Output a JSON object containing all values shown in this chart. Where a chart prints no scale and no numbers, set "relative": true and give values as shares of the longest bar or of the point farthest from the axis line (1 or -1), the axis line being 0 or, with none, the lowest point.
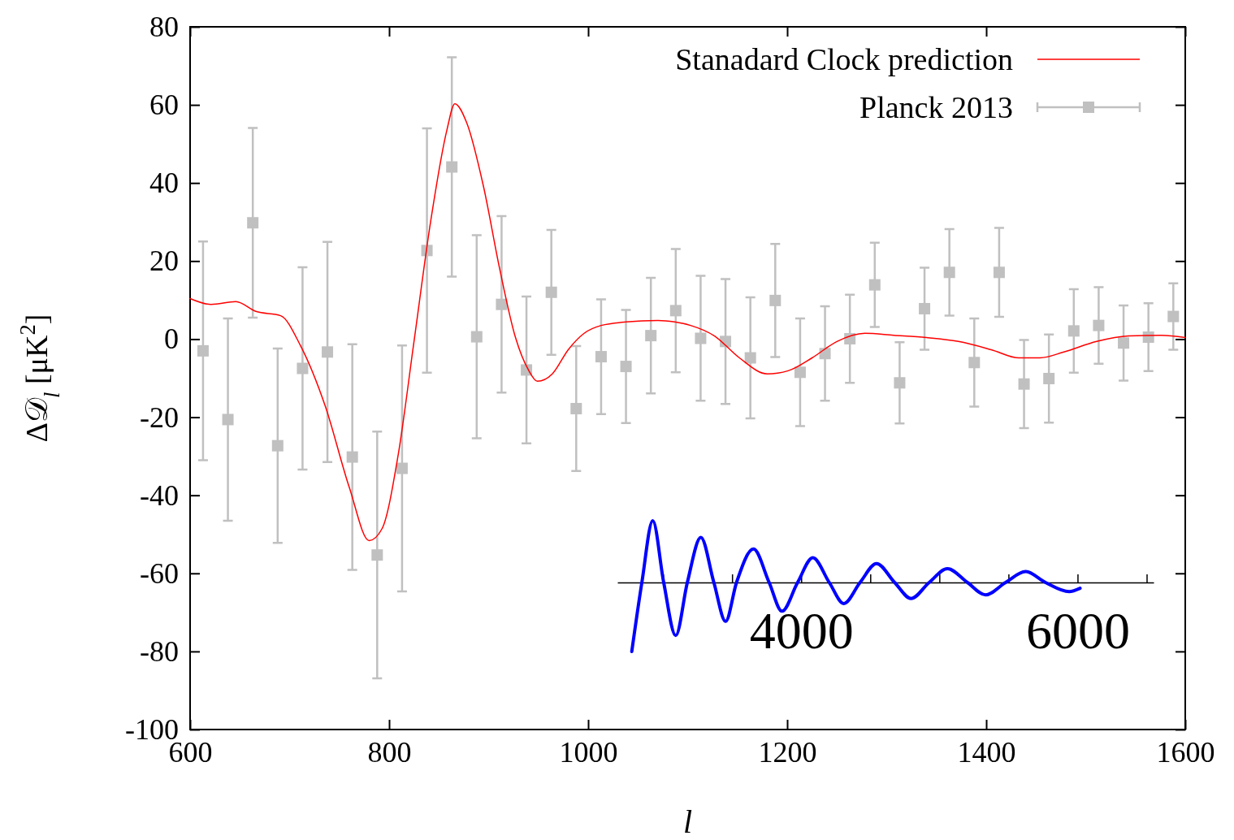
{
  "chart_data": [
    {
      "type": "line",
      "xlabel": "l",
      "ylabel": "Δ𝒟$_{l}$ [μK$^{2}$]",
      "xlim": [
        600,
        1600
      ],
      "xticks": [
        600,
        800,
        1000,
        1200,
        1400,
        1600
      ],
      "ylim": [
        -100,
        80
      ],
      "yticks": [
        -100,
        -80,
        -60,
        -40,
        -20,
        0,
        20,
        40,
        60,
        80
      ],
      "grid": false,
      "legend": "top right",
      "series": [
        {
          "name": "Stanadard Clock prediction",
          "color": "#ff0000",
          "line_style": "solid",
          "x": [
            600,
            621,
            646,
            666,
            691,
            711,
            736,
            760,
            780,
            793,
            809,
            825,
            842,
            858,
            866,
            878,
            895,
            911,
            927,
            940,
            949,
            964,
            980,
            996,
            1013,
            1038,
            1070,
            1087,
            1103,
            1127,
            1152,
            1180,
            1201,
            1225,
            1250,
            1278,
            1307,
            1340,
            1372,
            1405,
            1433,
            1454,
            1478,
            1511,
            1543,
            1576,
            1600
          ],
          "values": [
            10.4,
            8.9,
            9.6,
            7.1,
            6.0,
            -1.7,
            -17.3,
            -38,
            -51.6,
            -48.5,
            -29.8,
            -0.6,
            30.6,
            53.5,
            60.3,
            55.4,
            38.9,
            18.1,
            0.4,
            -7.9,
            -10.8,
            -8.9,
            -2.7,
            1.5,
            3.5,
            4.4,
            4.8,
            4.4,
            3.5,
            0.8,
            -4.8,
            -8.9,
            -8.1,
            -4.8,
            -0.6,
            1.5,
            1.0,
            0.4,
            -0.6,
            -2.7,
            -4.8,
            -4.8,
            -3.3,
            -0.6,
            0.8,
            1.0,
            0.4
          ]
        },
        {
          "name": "Planck 2013",
          "type": "scatter",
          "color": "#c0c0c0",
          "marker": "square",
          "x": [
            613,
            638,
            663,
            688,
            713,
            738,
            763,
            788,
            813,
            838,
            863,
            888,
            913,
            938,
            963,
            988,
            1013,
            1038,
            1063,
            1088,
            1113,
            1138,
            1163,
            1188,
            1213,
            1238,
            1263,
            1288,
            1313,
            1338,
            1363,
            1388,
            1413,
            1438,
            1463,
            1488,
            1513,
            1538,
            1563,
            1588
          ],
          "values": [
            -3,
            -20.6,
            29.8,
            -27.3,
            -7.5,
            -3.3,
            -30.2,
            -55.3,
            -33.1,
            22.7,
            44.1,
            0.6,
            8.9,
            -7.9,
            12,
            -17.8,
            -4.5,
            -7,
            0.9,
            7.3,
            0.2,
            -0.6,
            -4.8,
            9.9,
            -8.5,
            -3.7,
            0.1,
            13.9,
            -11.2,
            7.8,
            17.1,
            -6,
            17.1,
            -11.5,
            -10.1,
            2.1,
            3.5,
            -1,
            0.5,
            5.8
          ],
          "errors": [
            28,
            25.9,
            24.3,
            24.9,
            25.9,
            28.2,
            28.9,
            31.6,
            31.5,
            31.3,
            28.1,
            26,
            22.6,
            18.8,
            16,
            16,
            14.7,
            14.5,
            14.8,
            15.8,
            16,
            16,
            15.5,
            14.5,
            13.8,
            12.1,
            11.3,
            10.8,
            10.4,
            10.5,
            11.1,
            11.3,
            11.4,
            11.3,
            11.3,
            10.7,
            9.8,
            9.6,
            8.7,
            8.5
          ]
        }
      ]
    },
    {
      "type": "line",
      "relative": true,
      "xlim": [
        2670,
        6550
      ],
      "xticks": [
        {
          "value": 3000,
          "label": null
        },
        {
          "value": 3500,
          "label": null
        },
        4000,
        {
          "value": 4500,
          "label": null
        },
        {
          "value": 5000,
          "label": null
        },
        {
          "value": 5500,
          "label": null
        },
        6000,
        {
          "value": 6500,
          "label": null
        }
      ],
      "tick_labels": "x",
      "series": [
        {
          "color": "#0000ff",
          "x": [
            2774,
            2847,
            2926,
            3005,
            3092,
            3176,
            3274,
            3368,
            3453,
            3532,
            3655,
            3768,
            3861,
            3974,
            4084,
            4203,
            4308,
            4426,
            4545,
            4676,
            4795,
            4926,
            5058,
            5203,
            5334,
            5479,
            5624,
            5768,
            5939,
            6018
          ],
          "values": [
            -1,
            0,
            0.895,
            0,
            -0.768,
            0,
            0.653,
            0,
            -0.563,
            0,
            0.484,
            0,
            -0.416,
            0,
            0.358,
            0,
            -0.305,
            0,
            0.274,
            0,
            -0.232,
            0,
            0.2,
            0,
            -0.179,
            0,
            0.158,
            0,
            -0.132,
            -0.084
          ]
        }
      ]
    }
  ]
}
